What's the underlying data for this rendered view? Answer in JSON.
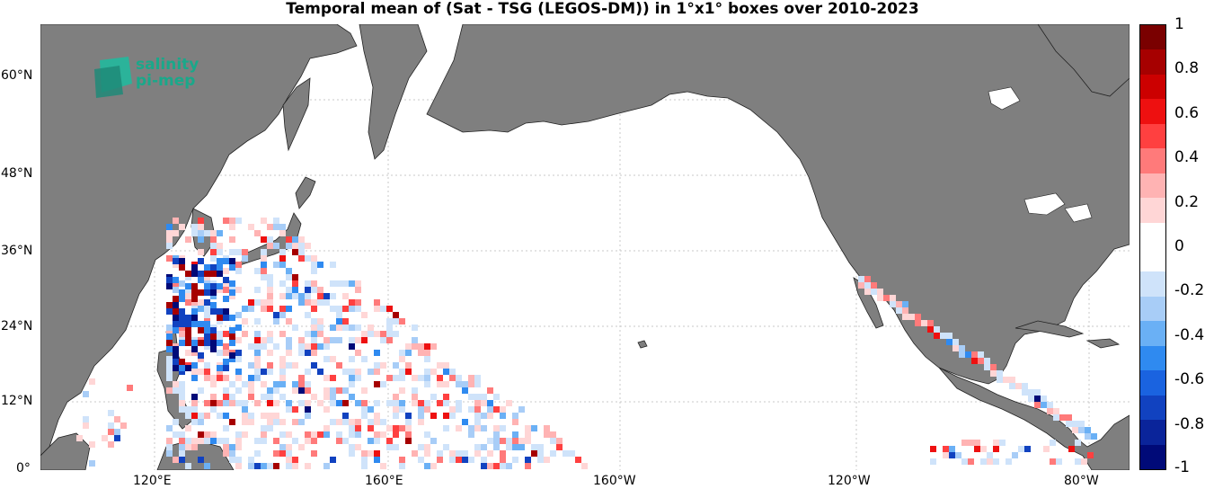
{
  "title": "Temporal mean of (Sat - TSG (LEGOS-DM)) in 1°x1° boxes over 2010-2023",
  "logo": {
    "line1": "salinity",
    "line2": "pi-mep"
  },
  "map": {
    "lat_labels": [
      "0°",
      "12°N",
      "24°N",
      "36°N",
      "48°N",
      "60°N"
    ],
    "lon_labels": [
      "120°E",
      "160°E",
      "160°W",
      "120°W",
      "80°W"
    ],
    "land_color": "#7f7f7f",
    "grid": "dotted"
  },
  "colorbar": {
    "ticks": [
      "1",
      "0.8",
      "0.6",
      "0.4",
      "0.2",
      "0",
      "-0.2",
      "-0.4",
      "-0.6",
      "-0.8",
      "-1"
    ],
    "colors": [
      "#7a0000",
      "#a60000",
      "#cc0000",
      "#ee1010",
      "#ff4040",
      "#ff7a7a",
      "#ffb3b3",
      "#ffd6d6",
      "#ffffff",
      "#ffffff",
      "#cfe3fa",
      "#a8cdf7",
      "#6ab0f5",
      "#2f8af0",
      "#1a63e0",
      "#1142c0",
      "#0a249a",
      "#000a78"
    ]
  }
}
